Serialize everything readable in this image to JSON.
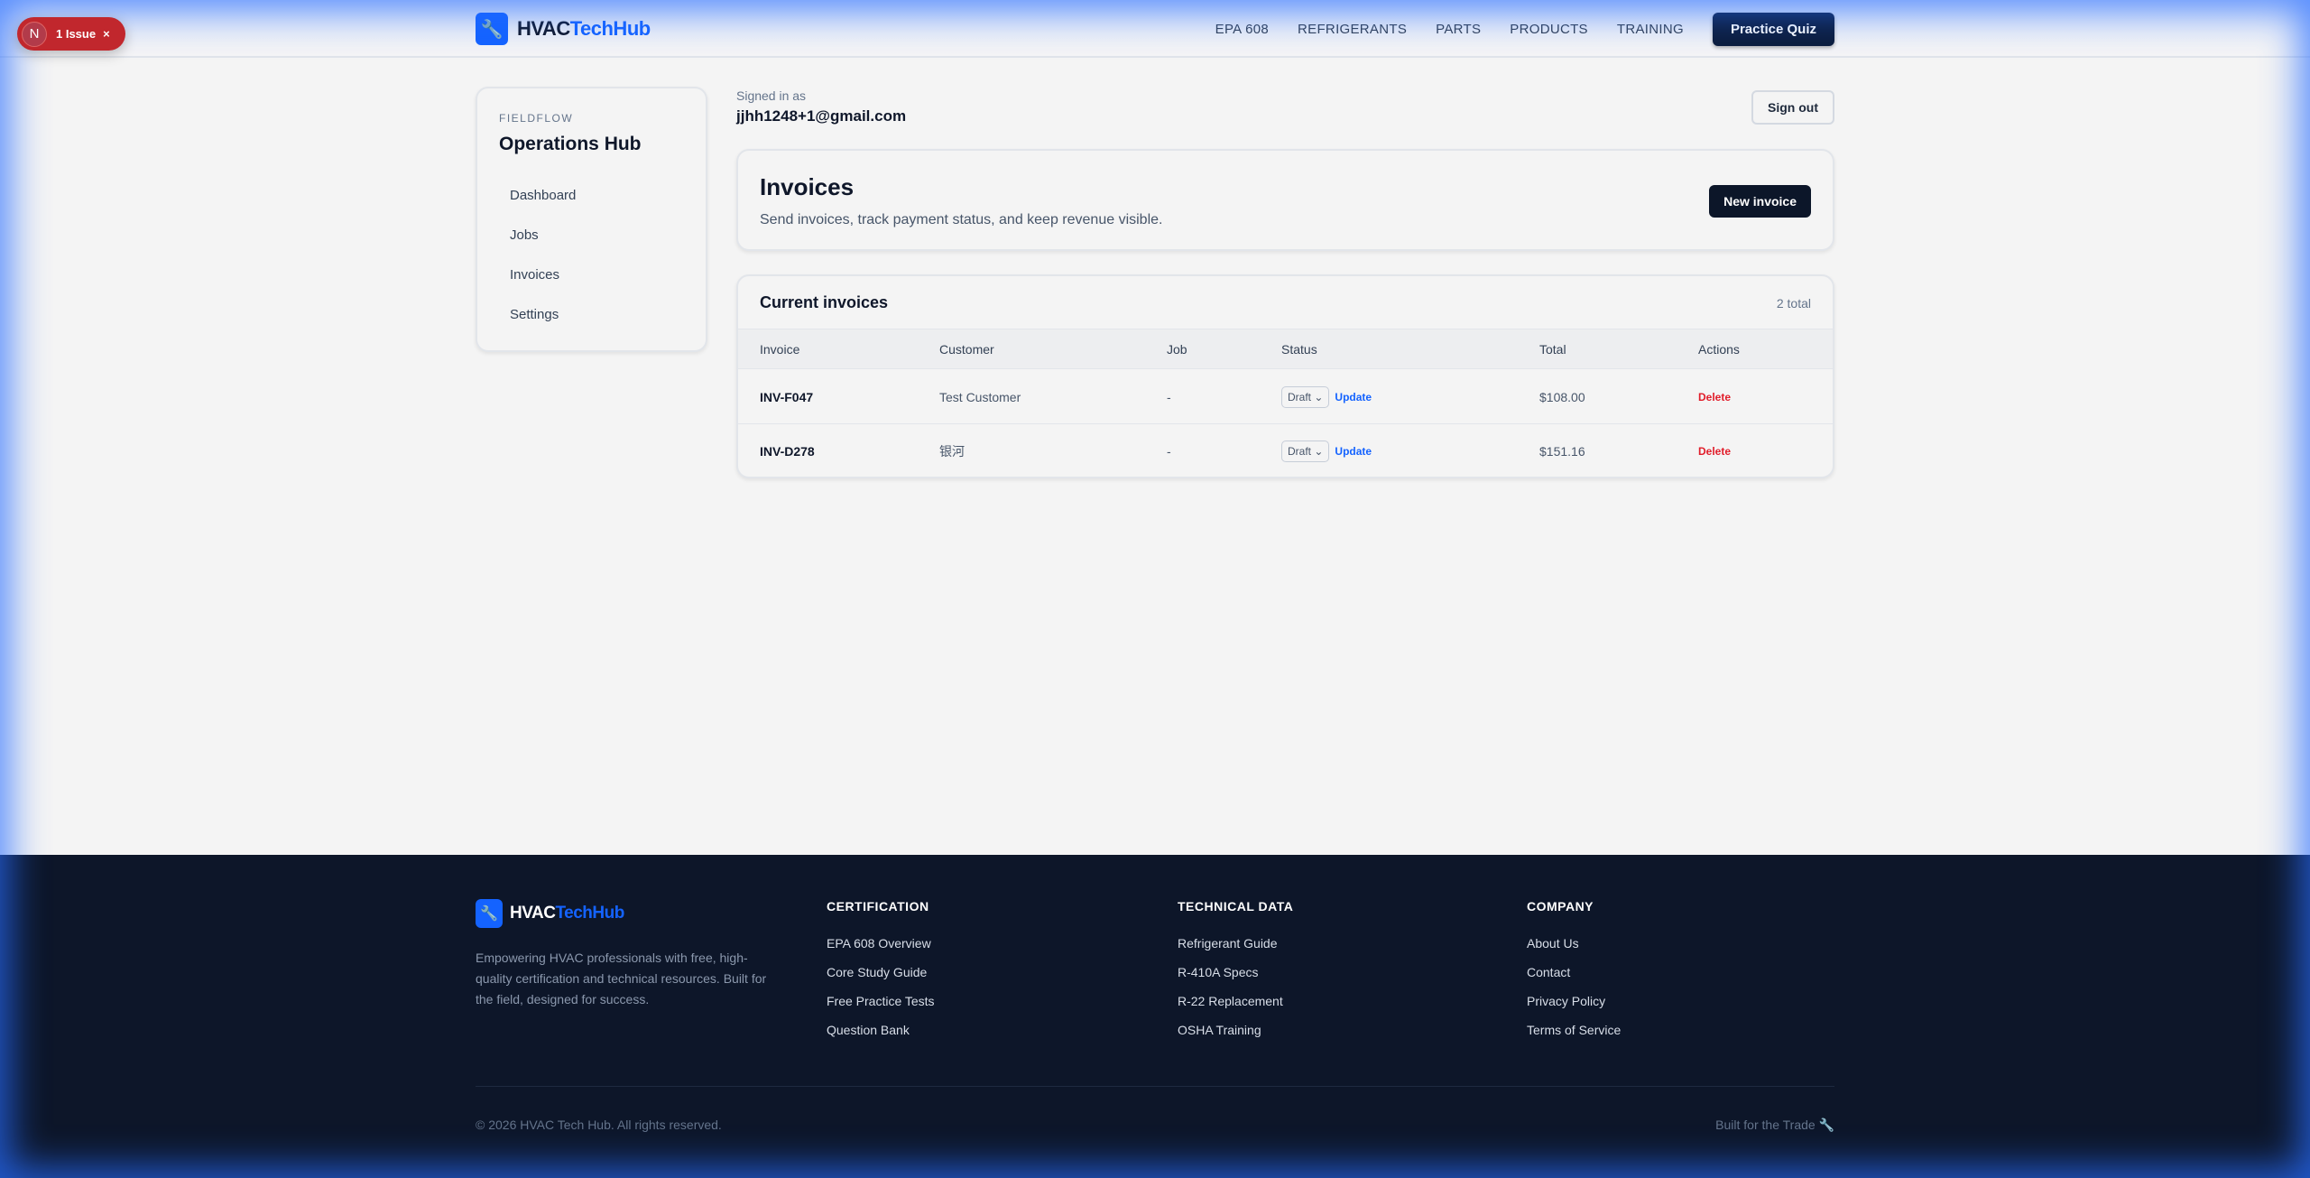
{
  "dev_overlay": {
    "badge_letter": "N",
    "issues_label": "1 Issue",
    "close": "×"
  },
  "header": {
    "logo": {
      "part1": "HVAC",
      "part2": "TechHub",
      "icon": "wrench-icon"
    },
    "nav": [
      "EPA 608",
      "REFRIGERANTS",
      "PARTS",
      "PRODUCTS",
      "TRAINING"
    ],
    "cta": "Practice Quiz"
  },
  "sidebar": {
    "eyebrow": "FIELDFLOW",
    "title": "Operations Hub",
    "items": [
      "Dashboard",
      "Jobs",
      "Invoices",
      "Settings"
    ]
  },
  "account": {
    "signed_in_label": "Signed in as",
    "email": "jjhh1248+1@gmail.com",
    "sign_out": "Sign out"
  },
  "hero": {
    "title": "Invoices",
    "subtitle": "Send invoices, track payment status, and keep revenue visible.",
    "new_button": "New invoice"
  },
  "invoices": {
    "title": "Current invoices",
    "count": "2 total",
    "columns": [
      "Invoice",
      "Customer",
      "Job",
      "Status",
      "Total",
      "Actions"
    ],
    "rows": [
      {
        "invoice": "INV-F047",
        "customer": "Test Customer",
        "job": "-",
        "status": "Draft",
        "update": "Update",
        "total": "$108.00",
        "action": "Delete"
      },
      {
        "invoice": "INV-D278",
        "customer": "银河",
        "job": "-",
        "status": "Draft",
        "update": "Update",
        "total": "$151.16",
        "action": "Delete"
      }
    ]
  },
  "footer": {
    "description": "Empowering HVAC professionals with free, high-quality certification and technical resources. Built for the field, designed for success.",
    "columns": [
      {
        "title": "CERTIFICATION",
        "links": [
          "EPA 608 Overview",
          "Core Study Guide",
          "Free Practice Tests",
          "Question Bank"
        ]
      },
      {
        "title": "TECHNICAL DATA",
        "links": [
          "Refrigerant Guide",
          "R-410A Specs",
          "R-22 Replacement",
          "OSHA Training"
        ]
      },
      {
        "title": "COMPANY",
        "links": [
          "About Us",
          "Contact",
          "Privacy Policy",
          "Terms of Service"
        ]
      }
    ],
    "copyright": "© 2026 HVAC Tech Hub. All rights reserved.",
    "tagline": "Built for the Trade 🔧"
  },
  "colors": {
    "accent": "#1463ff",
    "navy": "#0c1629",
    "danger": "#e11d2a",
    "issue": "#c1272d"
  }
}
